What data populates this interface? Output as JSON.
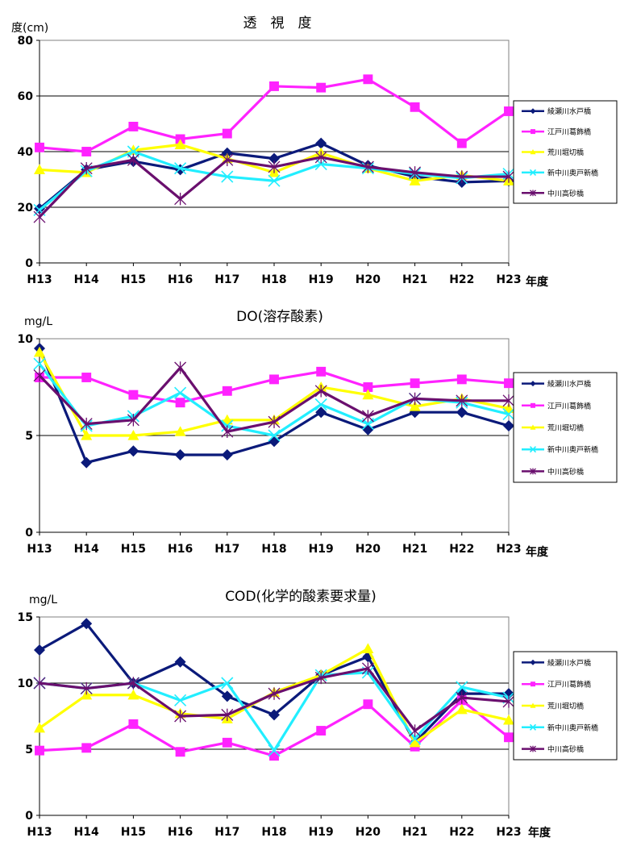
{
  "colors": {
    "s1": "#0b1a7a",
    "s2": "#ff22ff",
    "s3": "#ffff00",
    "s4": "#22eeff",
    "s5": "#6a0f6e"
  },
  "chart_data": [
    {
      "type": "line",
      "title": "透　視　度",
      "ylabel": "度(cm)",
      "xlabel": "年度",
      "categories": [
        "H13",
        "H14",
        "H15",
        "H16",
        "H17",
        "H18",
        "H19",
        "H20",
        "H21",
        "H22",
        "H23"
      ],
      "ylim": [
        0,
        80
      ],
      "yticks": [
        0,
        20,
        40,
        60,
        80
      ],
      "gridlines": [
        20,
        40,
        60
      ],
      "series": [
        {
          "name": "綾瀬川水戸橋",
          "values": [
            19.5,
            33.5,
            36.5,
            33.5,
            39.5,
            37.5,
            43,
            35,
            31,
            29,
            29.5
          ]
        },
        {
          "name": "江戸川葛飾橋",
          "values": [
            41.5,
            40,
            49,
            44.5,
            46.5,
            63.5,
            63,
            66,
            56,
            43,
            54.5
          ]
        },
        {
          "name": "荒川堀切橋",
          "values": [
            33.5,
            32.5,
            40.5,
            42.5,
            37.5,
            32.5,
            39.5,
            34,
            29.5,
            31.5,
            29.5
          ]
        },
        {
          "name": "新中川奥戸新橋",
          "values": [
            19,
            33,
            40,
            34,
            31,
            29.5,
            35.5,
            34,
            32,
            30.5,
            32
          ]
        },
        {
          "name": "中川高砂橋",
          "values": [
            16.5,
            34,
            37,
            23,
            37,
            34.5,
            38,
            34.5,
            32.5,
            31,
            31
          ]
        }
      ]
    },
    {
      "type": "line",
      "title": "DO(溶存酸素)",
      "ylabel": "mg/L",
      "xlabel": "年度",
      "categories": [
        "H13",
        "H14",
        "H15",
        "H16",
        "H17",
        "H18",
        "H19",
        "H20",
        "H21",
        "H22",
        "H23"
      ],
      "ylim": [
        0,
        10
      ],
      "yticks": [
        0,
        5,
        10
      ],
      "gridlines": [
        5
      ],
      "series": [
        {
          "name": "綾瀬川水戸橋",
          "values": [
            9.5,
            3.6,
            4.2,
            4.0,
            4.0,
            4.7,
            6.2,
            5.3,
            6.2,
            6.2,
            5.5
          ]
        },
        {
          "name": "江戸川葛飾橋",
          "values": [
            8.0,
            8.0,
            7.1,
            6.7,
            7.3,
            7.9,
            8.3,
            7.5,
            7.7,
            7.9,
            7.7
          ]
        },
        {
          "name": "荒川堀切橋",
          "values": [
            9.3,
            5.0,
            5.0,
            5.2,
            5.8,
            5.8,
            7.5,
            7.1,
            6.5,
            6.9,
            6.4
          ]
        },
        {
          "name": "新中川奥戸新橋",
          "values": [
            8.7,
            5.5,
            6.0,
            7.2,
            5.5,
            5.0,
            6.6,
            5.6,
            6.9,
            6.7,
            6.1
          ]
        },
        {
          "name": "中川高砂橋",
          "values": [
            8.1,
            5.6,
            5.8,
            8.5,
            5.2,
            5.7,
            7.3,
            6.0,
            6.9,
            6.8,
            6.8
          ]
        }
      ]
    },
    {
      "type": "line",
      "title": "COD(化学的酸素要求量)",
      "ylabel": "mg/L",
      "xlabel": "年度",
      "categories": [
        "H13",
        "H14",
        "H15",
        "H16",
        "H17",
        "H18",
        "H19",
        "H20",
        "H21",
        "H22",
        "H23"
      ],
      "ylim": [
        0,
        15
      ],
      "yticks": [
        0,
        5,
        10,
        15
      ],
      "gridlines": [
        5,
        10
      ],
      "series": [
        {
          "name": "綾瀬川水戸橋",
          "values": [
            12.5,
            14.5,
            10.0,
            11.6,
            9.0,
            7.6,
            10.6,
            12.0,
            5.5,
            9.2,
            9.2
          ]
        },
        {
          "name": "江戸川葛飾橋",
          "values": [
            4.9,
            5.1,
            6.9,
            4.8,
            5.5,
            4.5,
            6.4,
            8.4,
            5.2,
            8.7,
            5.9
          ]
        },
        {
          "name": "荒川堀切橋",
          "values": [
            6.6,
            9.1,
            9.1,
            7.7,
            7.3,
            9.3,
            10.6,
            12.6,
            5.5,
            8.0,
            7.2
          ]
        },
        {
          "name": "新中川奥戸新橋",
          "values": [
            10.0,
            9.6,
            10.0,
            8.7,
            10.0,
            4.9,
            10.6,
            10.8,
            5.8,
            9.7,
            8.9
          ]
        },
        {
          "name": "中川高砂橋",
          "values": [
            10.0,
            9.6,
            10.0,
            7.5,
            7.6,
            9.2,
            10.4,
            11.1,
            6.4,
            8.9,
            8.6
          ]
        }
      ]
    }
  ]
}
